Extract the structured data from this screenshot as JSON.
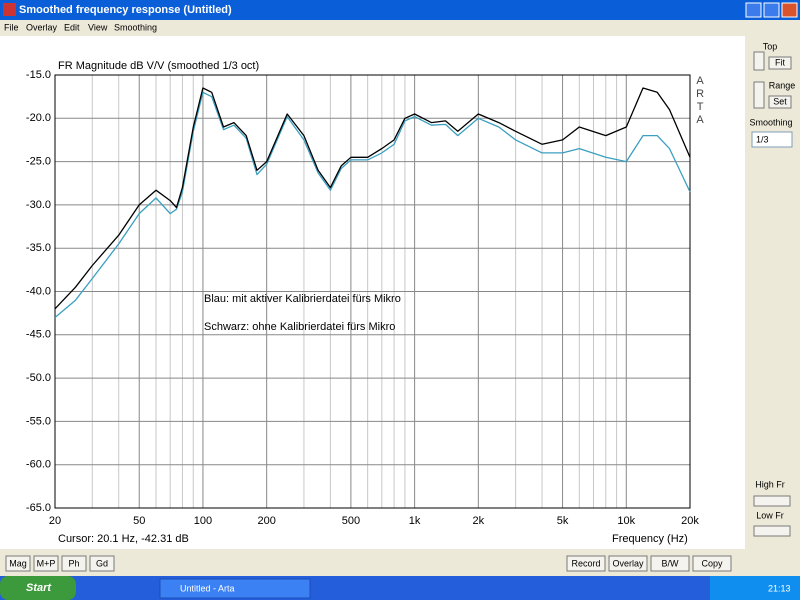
{
  "window": {
    "title": "Smoothed frequency response (Untitled)",
    "menu": [
      "File",
      "Overlay",
      "Edit",
      "View",
      "Smoothing"
    ]
  },
  "side_panel": {
    "top": "Top",
    "fit": "Fit",
    "range": "Range",
    "set": "Set",
    "smoothing": "Smoothing",
    "smoothing_value": "1/3",
    "high_fr": "High Fr",
    "low_fr": "Low Fr"
  },
  "buttons_left": [
    "Mag",
    "M+P",
    "Ph",
    "Gd"
  ],
  "buttons_right": [
    "Record",
    "Overlay",
    "B/W",
    "Copy"
  ],
  "taskbar": {
    "start": "Start",
    "task": "Untitled - Arta",
    "clock": "21:13"
  },
  "chart_data": {
    "type": "line",
    "title": "FR Magnitude dB V/V (smoothed 1/3 oct)",
    "xlabel": "Frequency (Hz)",
    "watermark": "ARTA",
    "cursor": "Cursor: 20.1 Hz, -42.31 dB",
    "annotations": [
      "Blau: mit aktiver Kalibrierdatei fürs Mikro",
      "Schwarz: ohne Kalibrierdatei fürs Mikro"
    ],
    "xscale": "log",
    "grid": true,
    "xlim": [
      20,
      20000
    ],
    "ylim": [
      -65,
      -15
    ],
    "xticks": [
      20,
      50,
      100,
      200,
      500,
      {
        "value": 1000,
        "label": "1k"
      },
      {
        "value": 2000,
        "label": "2k"
      },
      {
        "value": 5000,
        "label": "5k"
      },
      {
        "value": 10000,
        "label": "10k"
      },
      {
        "value": 20000,
        "label": "20k"
      }
    ],
    "xminor": [
      30,
      40,
      60,
      70,
      80,
      90,
      300,
      400,
      600,
      700,
      800,
      900,
      3000,
      4000,
      6000,
      7000,
      8000,
      9000
    ],
    "yticks": [
      {
        "value": -15,
        "label": "-15.0"
      },
      {
        "value": -20,
        "label": "-20.0"
      },
      {
        "value": -25,
        "label": "-25.0"
      },
      {
        "value": -30,
        "label": "-30.0"
      },
      {
        "value": -35,
        "label": "-35.0"
      },
      {
        "value": -40,
        "label": "-40.0"
      },
      {
        "value": -45,
        "label": "-45.0"
      },
      {
        "value": -50,
        "label": "-50.0"
      },
      {
        "value": -55,
        "label": "-55.0"
      },
      {
        "value": -60,
        "label": "-60.0"
      },
      {
        "value": -65,
        "label": "-65.0"
      }
    ],
    "x": [
      20,
      25,
      30,
      40,
      50,
      60,
      70,
      75,
      80,
      90,
      100,
      110,
      125,
      140,
      160,
      180,
      200,
      250,
      300,
      350,
      400,
      450,
      500,
      600,
      700,
      800,
      900,
      1000,
      1200,
      1400,
      1600,
      2000,
      2500,
      3000,
      4000,
      5000,
      6000,
      8000,
      10000,
      12000,
      14000,
      16000,
      20000
    ],
    "series": [
      {
        "color": "#000000",
        "values": [
          -42,
          -39.5,
          -37,
          -33.5,
          -30,
          -28.3,
          -29.5,
          -30.3,
          -28,
          -21,
          -16.5,
          -17,
          -21,
          -20.5,
          -22,
          -26,
          -25,
          -19.5,
          -22,
          -26,
          -28,
          -25.5,
          -24.5,
          -24.5,
          -23.5,
          -22.5,
          -20,
          -19.5,
          -20.5,
          -20.3,
          -21.5,
          -19.5,
          -20.5,
          -21.5,
          -23,
          -22.5,
          -21,
          -22,
          -21,
          -16.5,
          -17,
          -19,
          -24.5
        ]
      },
      {
        "color": "#3a9fc0",
        "values": [
          -43,
          -41,
          -38.5,
          -34.5,
          -31,
          -29.2,
          -31,
          -30.5,
          -28.5,
          -21.5,
          -17,
          -17.5,
          -21.3,
          -20.8,
          -22.3,
          -26.5,
          -25.3,
          -19.8,
          -22.5,
          -26.3,
          -28.3,
          -25.8,
          -24.8,
          -24.8,
          -24,
          -23,
          -20.3,
          -19.8,
          -20.8,
          -20.7,
          -22,
          -20,
          -21,
          -22.5,
          -24,
          -24,
          -23.5,
          -24.5,
          -25,
          -22,
          -22,
          -23.5,
          -28.5
        ]
      }
    ]
  }
}
